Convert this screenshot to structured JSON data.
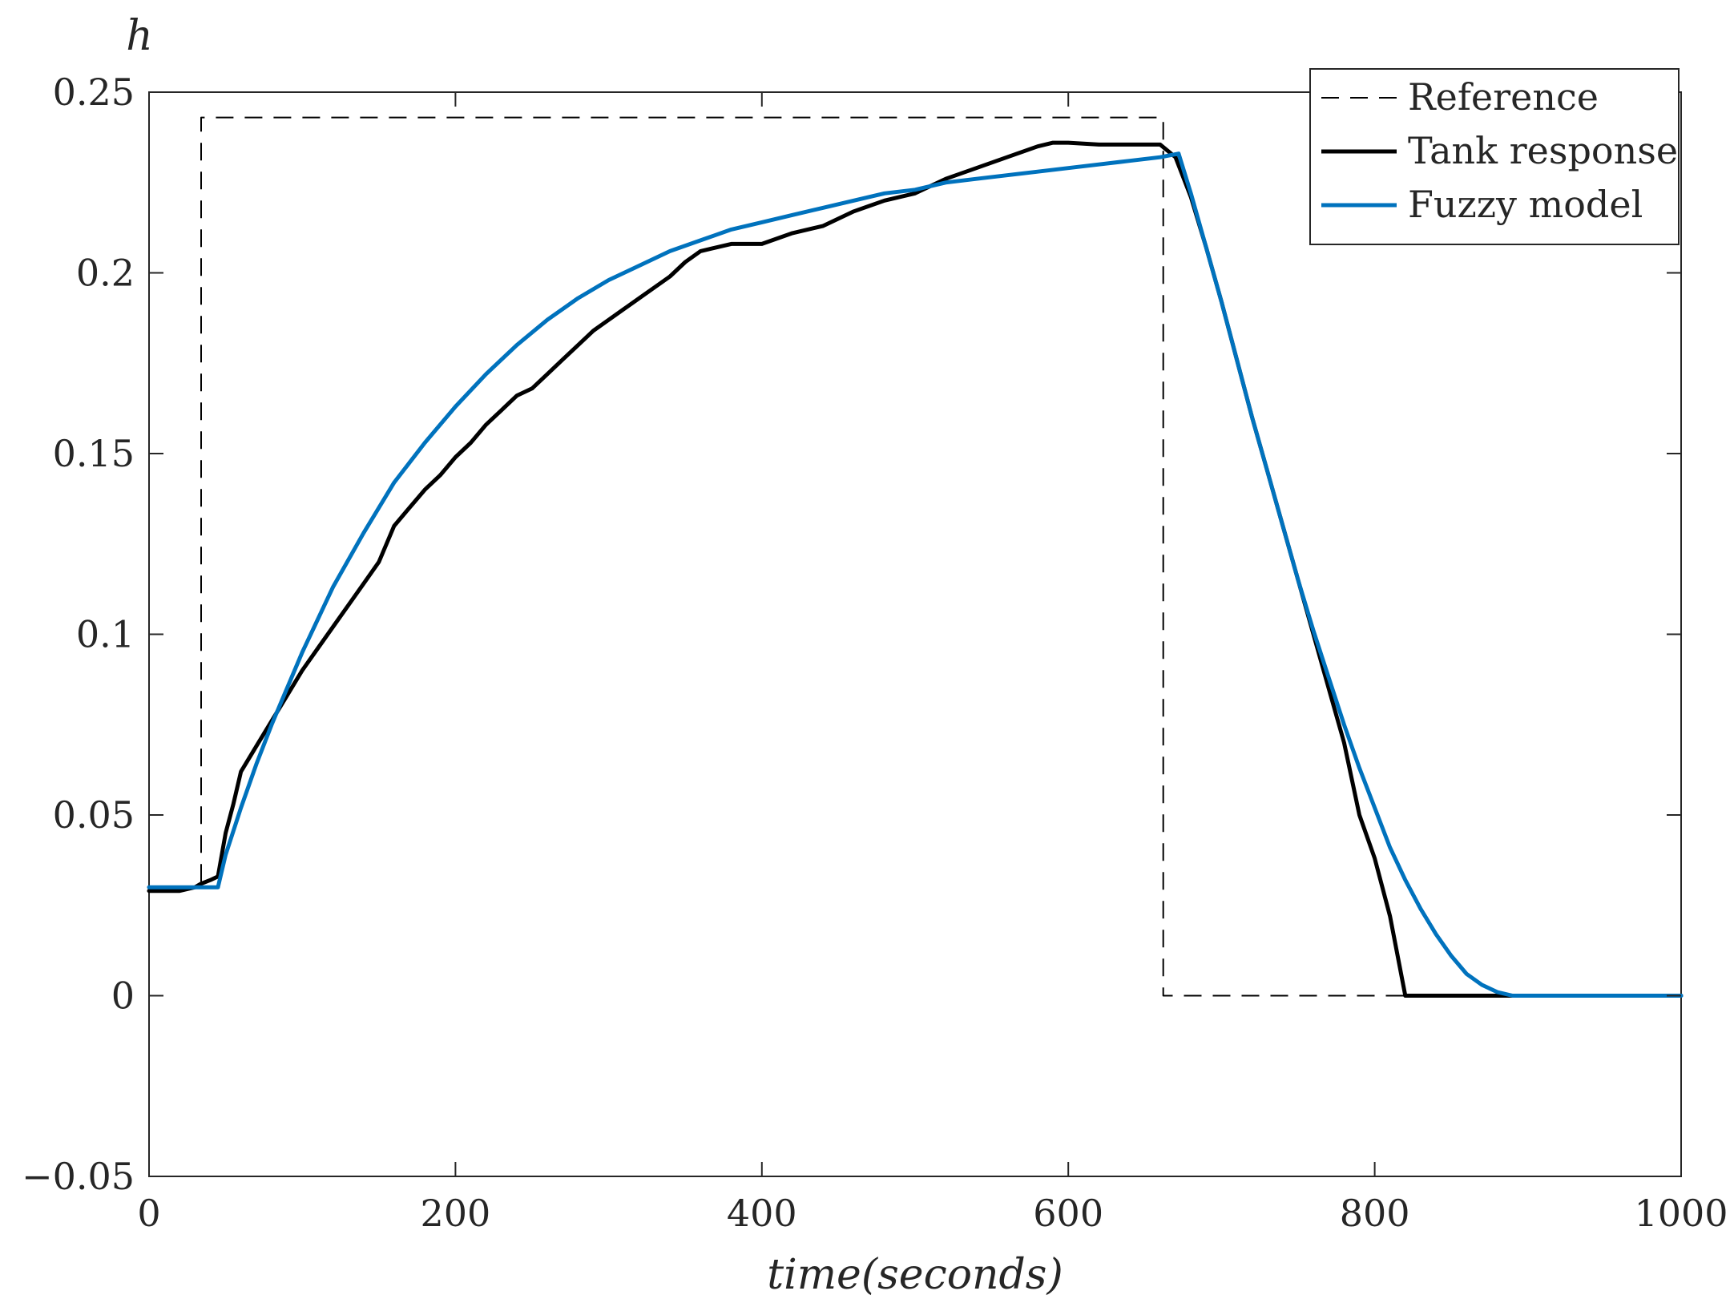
{
  "chart_data": {
    "type": "line",
    "title": "",
    "xlabel": "time(seconds)",
    "ylabel": "h",
    "xlim": [
      0,
      1000
    ],
    "ylim": [
      -0.05,
      0.25
    ],
    "xticks": [
      0,
      200,
      400,
      600,
      800,
      1000
    ],
    "xtick_labels": [
      "0",
      "200",
      "400",
      "600",
      "800",
      "1000"
    ],
    "yticks": [
      -0.05,
      0,
      0.05,
      0.1,
      0.15,
      0.2,
      0.25
    ],
    "ytick_labels": [
      "−0.05",
      "0",
      "0.05",
      "0.1",
      "0.15",
      "0.2",
      "0.25"
    ],
    "grid": false,
    "legend_position": "top-right",
    "series": [
      {
        "name": "Reference",
        "color": "#000000",
        "style": "dashed",
        "x": [
          0,
          34,
          34,
          662,
          662,
          1000
        ],
        "y": [
          0.03,
          0.03,
          0.243,
          0.243,
          0.0,
          0.0
        ]
      },
      {
        "name": "Tank response",
        "color": "#000000",
        "style": "solid",
        "x": [
          0,
          10,
          20,
          30,
          34,
          40,
          45,
          50,
          55,
          60,
          70,
          80,
          90,
          100,
          110,
          120,
          130,
          140,
          150,
          160,
          170,
          180,
          190,
          200,
          210,
          220,
          230,
          240,
          250,
          260,
          270,
          280,
          290,
          300,
          310,
          320,
          330,
          340,
          350,
          360,
          380,
          400,
          420,
          440,
          460,
          480,
          500,
          520,
          540,
          560,
          580,
          590,
          600,
          620,
          640,
          660,
          670,
          680,
          690,
          700,
          710,
          720,
          730,
          740,
          750,
          760,
          770,
          780,
          790,
          800,
          810,
          820,
          830,
          850,
          900,
          1000
        ],
        "y": [
          0.029,
          0.029,
          0.029,
          0.03,
          0.031,
          0.032,
          0.033,
          0.045,
          0.053,
          0.062,
          0.069,
          0.076,
          0.083,
          0.09,
          0.096,
          0.102,
          0.108,
          0.114,
          0.12,
          0.13,
          0.135,
          0.14,
          0.144,
          0.149,
          0.153,
          0.158,
          0.162,
          0.166,
          0.168,
          0.172,
          0.176,
          0.18,
          0.184,
          0.187,
          0.19,
          0.193,
          0.196,
          0.199,
          0.203,
          0.206,
          0.208,
          0.208,
          0.211,
          0.213,
          0.217,
          0.22,
          0.222,
          0.226,
          0.229,
          0.232,
          0.235,
          0.236,
          0.236,
          0.2355,
          0.2355,
          0.2355,
          0.232,
          0.221,
          0.207,
          0.192,
          0.176,
          0.16,
          0.145,
          0.13,
          0.115,
          0.1,
          0.085,
          0.07,
          0.05,
          0.038,
          0.022,
          0.0,
          0.0,
          0.0,
          0.0,
          0.0
        ]
      },
      {
        "name": "Fuzzy model",
        "color": "#0072BD",
        "style": "solid",
        "x": [
          0,
          30,
          45,
          50,
          60,
          70,
          80,
          90,
          100,
          110,
          120,
          140,
          160,
          180,
          200,
          220,
          240,
          260,
          280,
          300,
          320,
          340,
          360,
          380,
          400,
          420,
          440,
          460,
          480,
          500,
          520,
          540,
          560,
          580,
          600,
          620,
          640,
          660,
          672,
          680,
          690,
          700,
          710,
          720,
          730,
          740,
          750,
          760,
          770,
          780,
          790,
          800,
          810,
          820,
          830,
          840,
          850,
          860,
          870,
          880,
          890,
          900,
          1000
        ],
        "y": [
          0.03,
          0.03,
          0.03,
          0.039,
          0.052,
          0.064,
          0.075,
          0.085,
          0.095,
          0.104,
          0.113,
          0.128,
          0.142,
          0.153,
          0.163,
          0.172,
          0.18,
          0.187,
          0.193,
          0.198,
          0.202,
          0.206,
          0.209,
          0.212,
          0.214,
          0.216,
          0.218,
          0.22,
          0.222,
          0.223,
          0.225,
          0.226,
          0.227,
          0.228,
          0.229,
          0.23,
          0.231,
          0.232,
          0.233,
          0.222,
          0.207,
          0.192,
          0.176,
          0.16,
          0.145,
          0.13,
          0.115,
          0.101,
          0.088,
          0.075,
          0.063,
          0.052,
          0.041,
          0.032,
          0.024,
          0.017,
          0.011,
          0.006,
          0.003,
          0.001,
          0.0,
          0.0,
          0.0
        ]
      }
    ]
  }
}
